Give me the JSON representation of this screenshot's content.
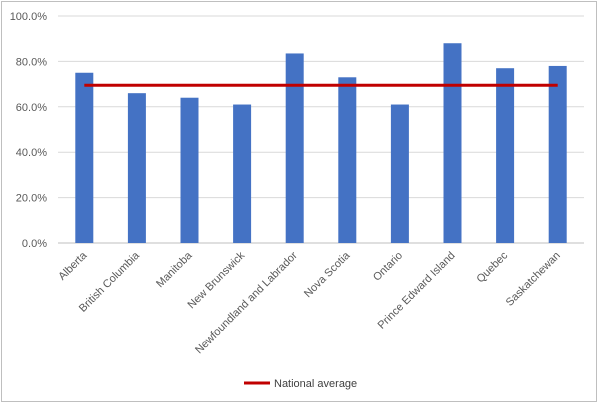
{
  "chart_data": {
    "type": "bar",
    "title": "",
    "xlabel": "",
    "ylabel": "",
    "categories": [
      "Alberta",
      "British Columbia",
      "Manitoba",
      "New Brunswick",
      "Newfoundland and Labrador",
      "Nova Scotia",
      "Ontario",
      "Prince Edward Island",
      "Quebec",
      "Saskatchewan"
    ],
    "series": [
      {
        "type": "bar",
        "values": [
          75.0,
          66.0,
          64.0,
          61.0,
          83.5,
          73.0,
          61.0,
          88.0,
          77.0,
          78.0
        ],
        "color": "#4472c4"
      },
      {
        "name": "National average",
        "type": "line",
        "values": [
          69.5,
          69.5,
          69.5,
          69.5,
          69.5,
          69.5,
          69.5,
          69.5,
          69.5,
          69.5
        ],
        "color": "#c00000"
      }
    ],
    "ylim": [
      0,
      100
    ],
    "yticks": [
      "0.0%",
      "20.0%",
      "40.0%",
      "60.0%",
      "80.0%",
      "100.0%"
    ],
    "ytick_values": [
      0,
      20,
      40,
      60,
      80,
      100
    ],
    "grid": true,
    "legend": "bottom"
  }
}
